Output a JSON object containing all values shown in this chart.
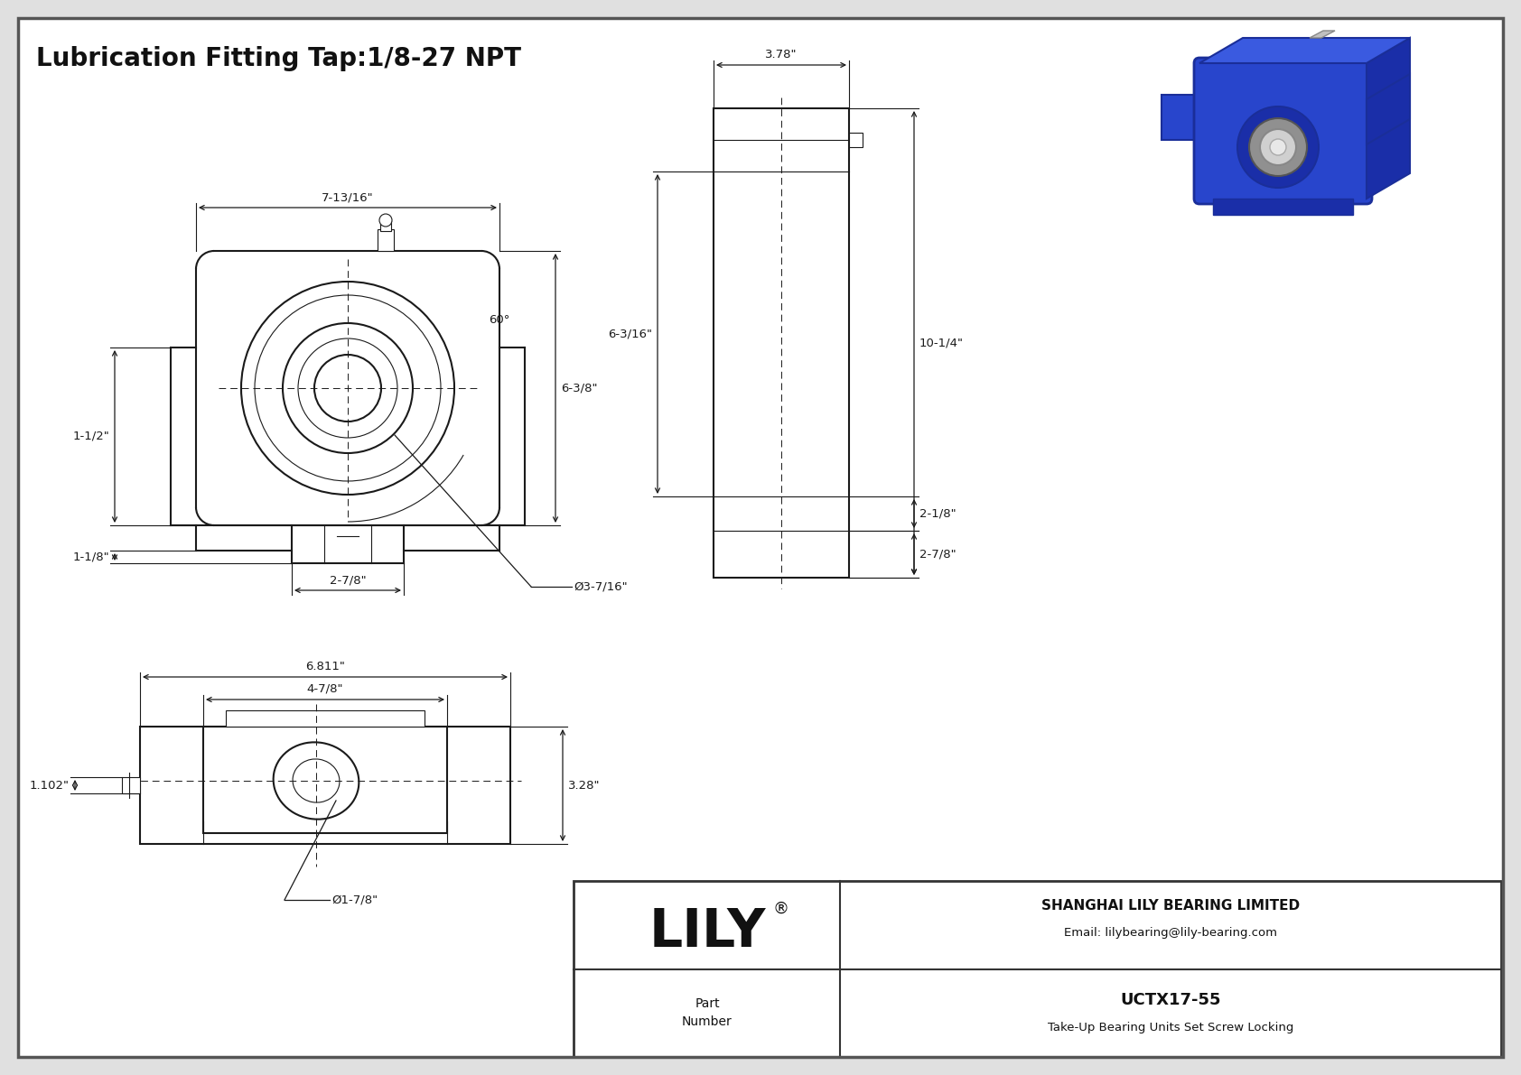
{
  "bg_color": "#e8e8e8",
  "line_color": "#1a1a1a",
  "title": "Lubrication Fitting Tap:1/8-27 NPT",
  "company": "SHANGHAI LILY BEARING LIMITED",
  "email": "Email: lilybearing@lily-bearing.com",
  "part_number": "UCTX17-55",
  "part_desc": "Take-Up Bearing Units Set Screw Locking",
  "dims_front": {
    "width_label": "7-13/16\"",
    "angle_label": "60°",
    "height_label": "6-3/8\"",
    "left_label": "1-1/2\"",
    "bottom_label": "1-1/8\"",
    "slot_label": "2-7/8\"",
    "dia_label": "Ø3-7/16\""
  },
  "dims_side": {
    "width_label": "3.78\"",
    "height_label": "6-3/16\"",
    "total_label": "10-1/4\"",
    "base1_label": "2-1/8\"",
    "base2_label": "2-7/8\""
  },
  "dims_bottom": {
    "width1_label": "6.811\"",
    "width2_label": "4-7/8\"",
    "height_label": "3.28\"",
    "left_label": "1.102\"",
    "dia_label": "Ø1-7/8\""
  }
}
